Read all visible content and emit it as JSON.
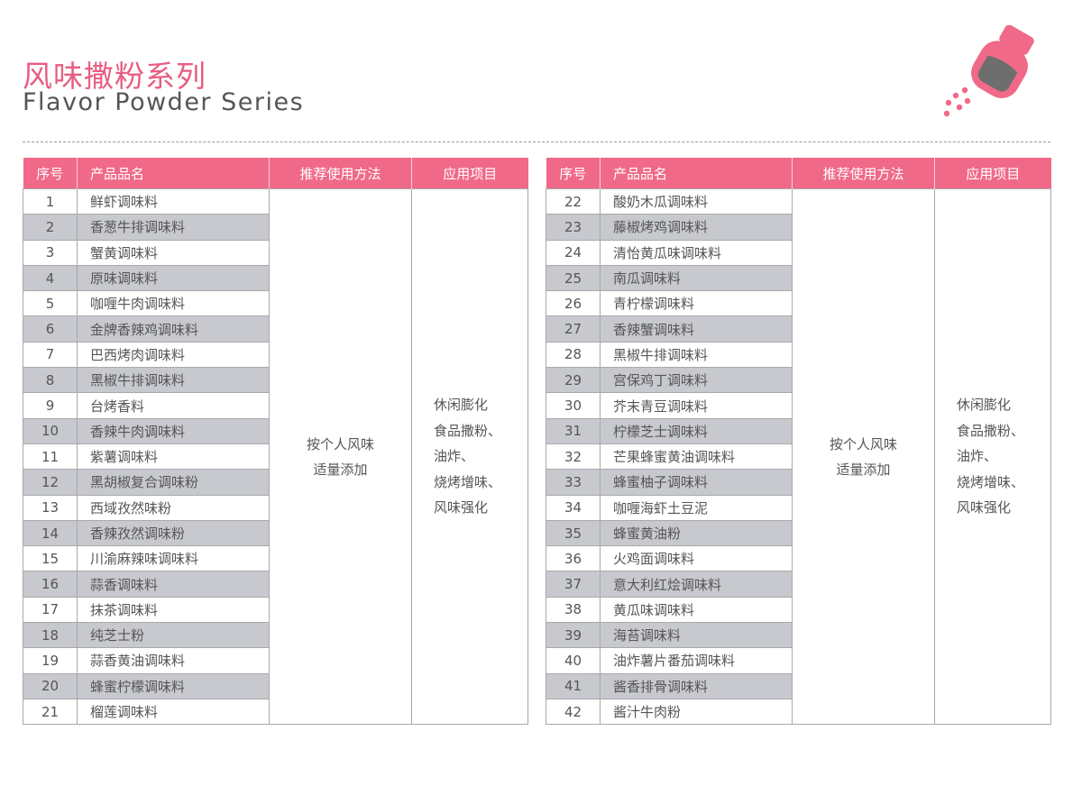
{
  "header": {
    "title_cn": "风味撒粉系列",
    "title_en": "Flavor Powder Series",
    "icon": "salt-shaker-icon",
    "accent_color": "#f06988"
  },
  "columns": [
    "序号",
    "产品品名",
    "推荐使用方法",
    "应用项目"
  ],
  "method_lines": [
    "按个人风味",
    "适量添加"
  ],
  "application_lines": [
    "休闲膨化",
    "食品撒粉、",
    "油炸、",
    "烧烤增味、",
    "风味强化"
  ],
  "left_table": {
    "rows": [
      {
        "no": "1",
        "name": "鲜虾调味料"
      },
      {
        "no": "2",
        "name": "香葱牛排调味料"
      },
      {
        "no": "3",
        "name": "蟹黄调味料"
      },
      {
        "no": "4",
        "name": "原味调味料"
      },
      {
        "no": "5",
        "name": "咖喱牛肉调味料"
      },
      {
        "no": "6",
        "name": "金牌香辣鸡调味料"
      },
      {
        "no": "7",
        "name": "巴西烤肉调味料"
      },
      {
        "no": "8",
        "name": "黑椒牛排调味料"
      },
      {
        "no": "9",
        "name": "台烤香料"
      },
      {
        "no": "10",
        "name": "香辣牛肉调味料"
      },
      {
        "no": "11",
        "name": "紫薯调味料"
      },
      {
        "no": "12",
        "name": "黑胡椒复合调味粉"
      },
      {
        "no": "13",
        "name": "西域孜然味粉"
      },
      {
        "no": "14",
        "name": "香辣孜然调味粉"
      },
      {
        "no": "15",
        "name": "川渝麻辣味调味料"
      },
      {
        "no": "16",
        "name": "蒜香调味料"
      },
      {
        "no": "17",
        "name": "抹茶调味料"
      },
      {
        "no": "18",
        "name": "纯芝士粉"
      },
      {
        "no": "19",
        "name": "蒜香黄油调味料"
      },
      {
        "no": "20",
        "name": "蜂蜜柠檬调味料"
      },
      {
        "no": "21",
        "name": "榴莲调味料"
      }
    ]
  },
  "right_table": {
    "rows": [
      {
        "no": "22",
        "name": "酸奶木瓜调味料"
      },
      {
        "no": "23",
        "name": "藤椒烤鸡调味料"
      },
      {
        "no": "24",
        "name": "清怡黄瓜味调味料"
      },
      {
        "no": "25",
        "name": "南瓜调味料"
      },
      {
        "no": "26",
        "name": "青柠檬调味料"
      },
      {
        "no": "27",
        "name": "香辣蟹调味料"
      },
      {
        "no": "28",
        "name": "黑椒牛排调味料"
      },
      {
        "no": "29",
        "name": "宫保鸡丁调味料"
      },
      {
        "no": "30",
        "name": "芥末青豆调味料"
      },
      {
        "no": "31",
        "name": "柠檬芝士调味料"
      },
      {
        "no": "32",
        "name": "芒果蜂蜜黄油调味料"
      },
      {
        "no": "33",
        "name": "蜂蜜柚子调味料"
      },
      {
        "no": "34",
        "name": "咖喱海虾土豆泥"
      },
      {
        "no": "35",
        "name": "蜂蜜黄油粉"
      },
      {
        "no": "36",
        "name": "火鸡面调味料"
      },
      {
        "no": "37",
        "name": "意大利红烩调味料"
      },
      {
        "no": "38",
        "name": "黄瓜味调味料"
      },
      {
        "no": "39",
        "name": "海苔调味料"
      },
      {
        "no": "40",
        "name": "油炸薯片番茄调味料"
      },
      {
        "no": "41",
        "name": "酱香排骨调味料"
      },
      {
        "no": "42",
        "name": "酱汁牛肉粉"
      }
    ]
  }
}
